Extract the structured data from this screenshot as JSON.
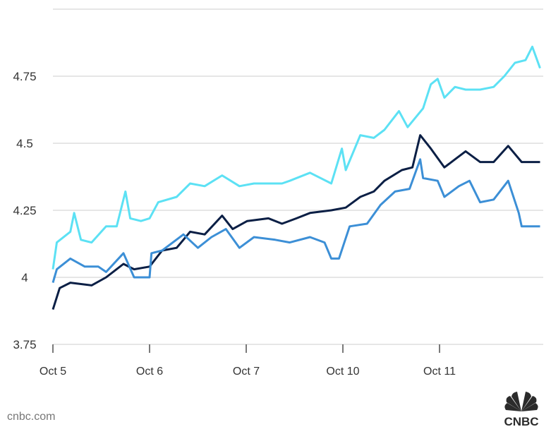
{
  "chart_data": {
    "type": "line",
    "title": "",
    "xlabel": "",
    "ylabel": "",
    "ylim": [
      3.75,
      5.0
    ],
    "yticks": [
      3.75,
      4,
      4.25,
      4.5,
      4.75,
      5.0
    ],
    "ytick_labels": [
      "3.75",
      "4",
      "4.25",
      "4.5",
      "4.75",
      ""
    ],
    "xlim": [
      0,
      5.1
    ],
    "xticks": [
      0,
      1,
      2,
      3,
      4
    ],
    "xtick_labels": [
      "Oct 5",
      "Oct 6",
      "Oct 7",
      "Oct 10",
      "Oct 11"
    ],
    "grid": true,
    "series": [
      {
        "name": "series-cyan",
        "color": "#5ce1f4",
        "x": [
          0,
          0.04,
          0.18,
          0.22,
          0.29,
          0.4,
          0.55,
          0.66,
          0.75,
          0.8,
          0.91,
          1.0,
          1.09,
          1.28,
          1.42,
          1.57,
          1.75,
          1.93,
          2.08,
          2.37,
          2.45,
          2.66,
          2.88,
          2.99,
          3.03,
          3.18,
          3.32,
          3.43,
          3.58,
          3.67,
          3.83,
          3.91,
          3.98,
          4.05,
          4.16,
          4.27,
          4.42,
          4.56,
          4.67,
          4.78,
          4.89,
          4.96,
          5.04
        ],
        "y": [
          4.03,
          4.13,
          4.17,
          4.24,
          4.14,
          4.13,
          4.19,
          4.19,
          4.32,
          4.22,
          4.21,
          4.22,
          4.28,
          4.3,
          4.35,
          4.34,
          4.38,
          4.34,
          4.35,
          4.35,
          4.36,
          4.39,
          4.35,
          4.48,
          4.4,
          4.53,
          4.52,
          4.55,
          4.62,
          4.56,
          4.63,
          4.72,
          4.74,
          4.67,
          4.71,
          4.7,
          4.7,
          4.71,
          4.75,
          4.8,
          4.81,
          4.86,
          4.78
        ]
      },
      {
        "name": "series-navy",
        "color": "#0b1f45",
        "x": [
          0,
          0.07,
          0.18,
          0.4,
          0.55,
          0.73,
          0.84,
          1.0,
          1.13,
          1.28,
          1.42,
          1.57,
          1.75,
          1.86,
          2.01,
          2.23,
          2.37,
          2.52,
          2.66,
          2.88,
          3.03,
          3.18,
          3.32,
          3.43,
          3.61,
          3.72,
          3.8,
          3.91,
          4.05,
          4.16,
          4.27,
          4.42,
          4.56,
          4.71,
          4.85,
          5.04
        ],
        "y": [
          3.88,
          3.96,
          3.98,
          3.97,
          4.0,
          4.05,
          4.03,
          4.04,
          4.1,
          4.11,
          4.17,
          4.16,
          4.23,
          4.18,
          4.21,
          4.22,
          4.2,
          4.22,
          4.24,
          4.25,
          4.26,
          4.3,
          4.32,
          4.36,
          4.4,
          4.41,
          4.53,
          4.48,
          4.41,
          4.44,
          4.47,
          4.43,
          4.43,
          4.49,
          4.43,
          4.43
        ]
      },
      {
        "name": "series-blue",
        "color": "#3c8fd6",
        "x": [
          0,
          0.04,
          0.18,
          0.33,
          0.47,
          0.55,
          0.73,
          0.84,
          1.0,
          1.02,
          1.13,
          1.35,
          1.5,
          1.64,
          1.79,
          1.93,
          2.08,
          2.3,
          2.45,
          2.66,
          2.81,
          2.88,
          2.96,
          3.07,
          3.25,
          3.39,
          3.54,
          3.69,
          3.8,
          3.83,
          3.98,
          4.05,
          4.2,
          4.31,
          4.42,
          4.56,
          4.71,
          4.82,
          4.85,
          5.04
        ],
        "y": [
          3.98,
          4.03,
          4.07,
          4.04,
          4.04,
          4.02,
          4.09,
          4.0,
          4.0,
          4.09,
          4.1,
          4.16,
          4.11,
          4.15,
          4.18,
          4.11,
          4.15,
          4.14,
          4.13,
          4.15,
          4.13,
          4.07,
          4.07,
          4.19,
          4.2,
          4.27,
          4.32,
          4.33,
          4.44,
          4.37,
          4.36,
          4.3,
          4.34,
          4.36,
          4.28,
          4.29,
          4.36,
          4.24,
          4.19,
          4.19
        ]
      }
    ]
  },
  "footer": {
    "source": "cnbc.com",
    "logo_text": "CNBC"
  }
}
